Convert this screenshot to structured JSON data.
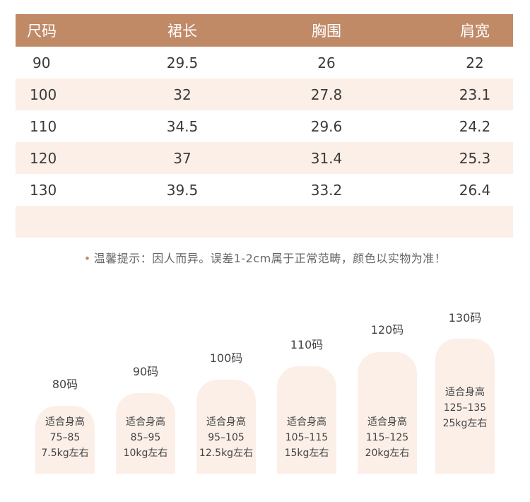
{
  "table": {
    "headers": [
      "尺码",
      "裙长",
      "胸围",
      "肩宽"
    ],
    "rows": [
      [
        "90",
        "29.5",
        "26",
        "22"
      ],
      [
        "100",
        "32",
        "27.8",
        "23.1"
      ],
      [
        "110",
        "34.5",
        "29.6",
        "24.2"
      ],
      [
        "120",
        "37",
        "31.4",
        "25.3"
      ],
      [
        "130",
        "39.5",
        "33.2",
        "26.4"
      ]
    ]
  },
  "note": "温馨提示：因人而异。误差1-2cm属于正常范畴，颜色以实物为准！",
  "note_bullet": "•",
  "sizes": [
    {
      "label": "80码",
      "line1": "适合身高",
      "line2": "75–85",
      "line3": "7.5kg左右"
    },
    {
      "label": "90码",
      "line1": "适合身高",
      "line2": "85–95",
      "line3": "10kg左右"
    },
    {
      "label": "100码",
      "line1": "适合身高",
      "line2": "95–105",
      "line3": "12.5kg左右"
    },
    {
      "label": "110码",
      "line1": "适合身高",
      "line2": "105–115",
      "line3": "15kg左右"
    },
    {
      "label": "120码",
      "line1": "适合身高",
      "line2": "115–125",
      "line3": "20kg左右"
    },
    {
      "label": "130码",
      "line1": "适合身高",
      "line2": "125–135",
      "line3": "25kg左右"
    }
  ],
  "colors": {
    "header_bg": "#c08a67",
    "row_alt": "#fbefe8",
    "bar_bg": "#fbefe8"
  }
}
